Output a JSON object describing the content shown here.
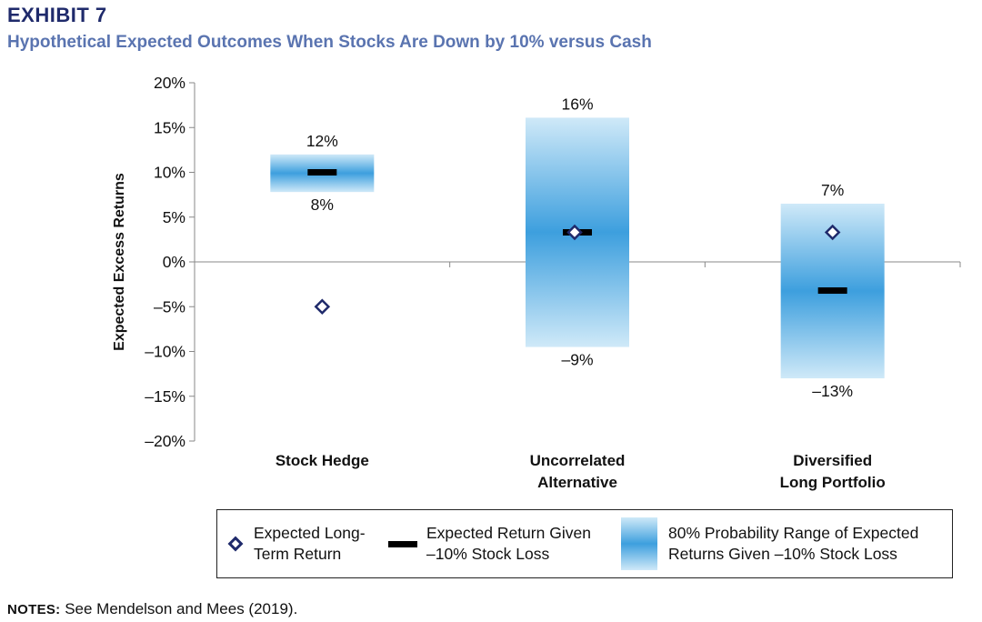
{
  "header": {
    "exhibit": "EXHIBIT 7",
    "subtitle": "Hypothetical Expected Outcomes When Stocks Are Down by 10% versus Cash"
  },
  "chart_data": {
    "type": "range-bar",
    "ylabel": "Expected Excess Returns",
    "ylim": [
      -20,
      20
    ],
    "yticks": [
      20,
      15,
      10,
      5,
      0,
      -5,
      -10,
      -15,
      -20
    ],
    "ytick_labels": [
      "20%",
      "15%",
      "10%",
      "5%",
      "0%",
      "–5%",
      "–10%",
      "–15%",
      "–20%"
    ],
    "categories": [
      {
        "label": "Stock Hedge"
      },
      {
        "label": "Uncorrelated\nAlternative"
      },
      {
        "label": "Diversified\nLong Portfolio"
      }
    ],
    "series": [
      {
        "name": "80% Probability Range of Expected Returns Given –10% Stock Loss",
        "low": [
          7.8,
          -9.5,
          -13
        ],
        "high": [
          12,
          16.1,
          6.5
        ],
        "low_labels": [
          "8%",
          "–9%",
          "–13%"
        ],
        "high_labels": [
          "12%",
          "16%",
          "7%"
        ]
      },
      {
        "name": "Expected Return Given –10% Stock Loss",
        "values": [
          10,
          3.3,
          -3.2
        ]
      },
      {
        "name": "Expected Long-Term Return",
        "values": [
          -5,
          3.3,
          3.3
        ]
      }
    ],
    "colors": {
      "range_edge": "#cfe9f8",
      "range_center": "#3d9fde",
      "diamond": "#1f2a6b",
      "bar": "#000000",
      "axis": "#888888"
    }
  },
  "legend": {
    "diamond_label": "Expected Long-\nTerm Return",
    "bar_label": "Expected Return Given\n–10% Stock Loss",
    "range_label": "80% Probability Range of Expected\nReturns Given –10% Stock Loss"
  },
  "notes": {
    "prefix": "NOTES:",
    "text": " See Mendelson and Mees (2019)."
  }
}
